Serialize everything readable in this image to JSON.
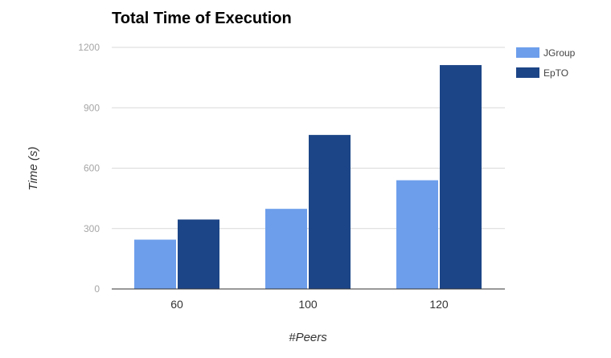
{
  "chart_data": {
    "type": "bar",
    "title": "Total Time of Execution",
    "xlabel": "#Peers",
    "ylabel": "Time (s)",
    "categories": [
      "60",
      "100",
      "120"
    ],
    "series": [
      {
        "name": "JGroup",
        "values": [
          245,
          398,
          540
        ],
        "color": "#6d9eeb"
      },
      {
        "name": "EpTO",
        "values": [
          345,
          765,
          1112
        ],
        "color": "#1c4587"
      }
    ],
    "ylim": [
      0,
      1200
    ],
    "yticks": [
      0,
      300,
      600,
      900,
      1200
    ],
    "grid": true,
    "legend": "right"
  }
}
